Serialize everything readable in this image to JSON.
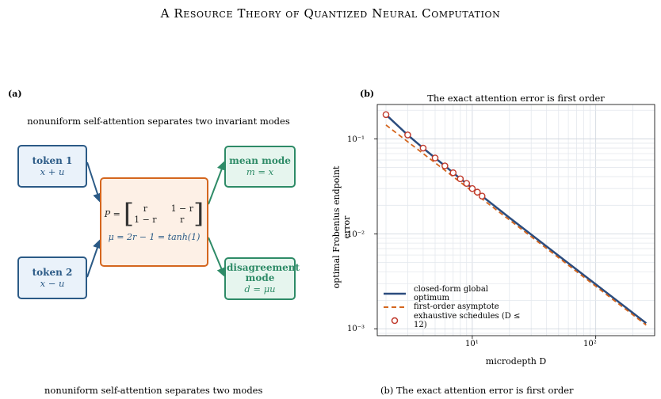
{
  "header": "A Resource Theory of Quantized Neural Computation",
  "panel_a": {
    "label": "(a)",
    "title": "nonuniform self-attention separates two invariant modes",
    "token1": {
      "title": "token 1",
      "expr": "x + u"
    },
    "token2": {
      "title": "token 2",
      "expr": "x − u"
    },
    "matrix": {
      "lhs": "P =",
      "cells": [
        "r",
        "1 − r",
        "1 − r",
        "r"
      ],
      "mu": "μ = 2r − 1 = tanh(1)"
    },
    "mean_mode": {
      "title": "mean mode",
      "expr": "m = x"
    },
    "disagreement_mode": {
      "title": "disagreement mode",
      "expr": "d = μu"
    },
    "colors": {
      "blue": "#2b5a86",
      "green": "#2e8b67",
      "orange": "#d4661e"
    }
  },
  "panel_b": {
    "label": "(b)",
    "title": "The exact attention error is first order",
    "ytick_labels": [
      "10⁻¹",
      "10⁻²",
      "10⁻³"
    ],
    "xtick_labels": [
      "10¹",
      "10²"
    ],
    "legend": [
      "closed-form global optimum",
      "first-order asymptote",
      "exhaustive schedules (D ≤ 12)"
    ]
  },
  "chart_data": {
    "type": "line",
    "title": "The exact attention error is first order",
    "xlabel": "microdepth D",
    "ylabel": "optimal Frobenius endpoint error",
    "xscale": "log",
    "yscale": "log",
    "xlim": [
      1.7,
      300
    ],
    "ylim": [
      0.00085,
      0.23
    ],
    "grid": true,
    "legend_position": "lower-left",
    "series": [
      {
        "name": "closed-form global optimum",
        "style": "solid",
        "color": "#2b4c7e",
        "x": [
          2,
          3,
          4,
          5,
          6,
          7,
          8,
          9,
          10,
          11,
          12,
          20,
          50,
          100,
          256
        ],
        "y": [
          0.18,
          0.11,
          0.08,
          0.063,
          0.052,
          0.044,
          0.038,
          0.034,
          0.03,
          0.0275,
          0.025,
          0.0148,
          0.0059,
          0.00295,
          0.00115
        ]
      },
      {
        "name": "first-order asymptote",
        "style": "dashed",
        "color": "#d4661e",
        "x": [
          2,
          256
        ],
        "y": [
          0.14,
          0.0011
        ]
      },
      {
        "name": "exhaustive schedules (D ≤ 12)",
        "style": "markers",
        "color": "#c0392b",
        "x": [
          2,
          3,
          4,
          5,
          6,
          7,
          8,
          9,
          10,
          11,
          12
        ],
        "y": [
          0.18,
          0.11,
          0.08,
          0.063,
          0.052,
          0.044,
          0.038,
          0.034,
          0.03,
          0.0275,
          0.025
        ]
      }
    ]
  },
  "captions": {
    "left": "nonuniform self-attention separates two modes",
    "right": "(b) The exact attention error is first order"
  }
}
